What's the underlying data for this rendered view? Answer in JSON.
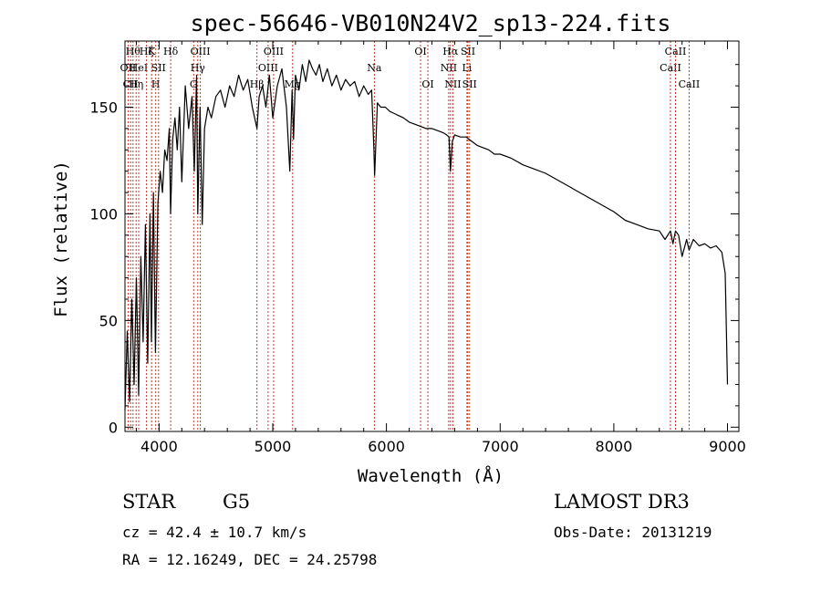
{
  "chart_data": {
    "type": "line",
    "title": "spec-56646-VB010N24V2_sp13-224.fits",
    "xlabel": "Wavelength (Å)",
    "ylabel": "Flux (relative)",
    "xlim": [
      3700,
      9100
    ],
    "ylim": [
      -2,
      181
    ],
    "xticks": [
      4000,
      5000,
      6000,
      7000,
      8000,
      9000
    ],
    "yticks": [
      0,
      50,
      100,
      150
    ],
    "series": [
      {
        "name": "flux",
        "x": [
          3700,
          3720,
          3740,
          3760,
          3780,
          3800,
          3820,
          3840,
          3860,
          3880,
          3900,
          3920,
          3933,
          3950,
          3968,
          3990,
          4010,
          4030,
          4050,
          4070,
          4090,
          4101,
          4120,
          4140,
          4160,
          4180,
          4200,
          4230,
          4260,
          4290,
          4310,
          4330,
          4340,
          4360,
          4380,
          4400,
          4430,
          4460,
          4500,
          4540,
          4580,
          4620,
          4660,
          4700,
          4740,
          4780,
          4820,
          4861,
          4880,
          4910,
          4940,
          4970,
          5000,
          5040,
          5080,
          5120,
          5150,
          5170,
          5183,
          5200,
          5230,
          5260,
          5290,
          5320,
          5350,
          5380,
          5410,
          5440,
          5480,
          5520,
          5560,
          5600,
          5640,
          5680,
          5720,
          5760,
          5800,
          5840,
          5870,
          5890,
          5896,
          5920,
          5950,
          5990,
          6030,
          6070,
          6110,
          6150,
          6200,
          6250,
          6300,
          6350,
          6400,
          6450,
          6500,
          6530,
          6550,
          6563,
          6580,
          6600,
          6650,
          6700,
          6750,
          6800,
          6850,
          6900,
          6950,
          7000,
          7100,
          7200,
          7300,
          7400,
          7500,
          7600,
          7700,
          7800,
          7900,
          8000,
          8100,
          8200,
          8300,
          8400,
          8450,
          8498,
          8520,
          8542,
          8570,
          8600,
          8640,
          8662,
          8700,
          8750,
          8800,
          8850,
          8900,
          8950,
          8980,
          9000
        ],
        "values": [
          8,
          45,
          12,
          60,
          20,
          70,
          15,
          80,
          40,
          95,
          30,
          100,
          40,
          110,
          35,
          105,
          120,
          110,
          130,
          125,
          140,
          100,
          135,
          145,
          130,
          150,
          115,
          160,
          140,
          155,
          120,
          165,
          100,
          150,
          95,
          140,
          150,
          145,
          155,
          158,
          150,
          160,
          155,
          165,
          158,
          163,
          150,
          140,
          155,
          160,
          150,
          165,
          145,
          160,
          168,
          150,
          120,
          158,
          135,
          165,
          158,
          170,
          162,
          172,
          168,
          165,
          170,
          162,
          168,
          160,
          165,
          158,
          163,
          160,
          162,
          155,
          160,
          156,
          158,
          130,
          118,
          152,
          150,
          150,
          148,
          147,
          146,
          145,
          143,
          142,
          141,
          140,
          140,
          139,
          138,
          137,
          136,
          120,
          134,
          137,
          136,
          136,
          134,
          132,
          131,
          130,
          128,
          128,
          126,
          123,
          121,
          119,
          116,
          113,
          110,
          107,
          104,
          101,
          97,
          95,
          93,
          92,
          88,
          92,
          86,
          92,
          90,
          80,
          88,
          83,
          88,
          85,
          86,
          84,
          85,
          82,
          72,
          20
        ]
      }
    ],
    "lines": [
      {
        "wave": 3727,
        "label": "OII",
        "row": 1
      },
      {
        "wave": 3750,
        "label": "CII",
        "row": 2
      },
      {
        "wave": 3771,
        "label": "Hθ",
        "row": 0
      },
      {
        "wave": 3798,
        "label": "Hη",
        "row": 2
      },
      {
        "wave": 3820,
        "label": "HeI",
        "row": 1
      },
      {
        "wave": 3889,
        "label": "Hζ",
        "row": 0
      },
      {
        "wave": 3934,
        "label": "K",
        "row": 0
      },
      {
        "wave": 3970,
        "label": "H",
        "row": 2
      },
      {
        "wave": 3995,
        "label": "SII",
        "row": 1
      },
      {
        "wave": 4102,
        "label": "Hδ",
        "row": 0
      },
      {
        "wave": 4304,
        "label": "G",
        "row": 2
      },
      {
        "wave": 4340,
        "label": "Hγ",
        "row": 1
      },
      {
        "wave": 4363,
        "label": "OIII",
        "row": 0
      },
      {
        "wave": 4861,
        "label": "Hβ",
        "row": 2
      },
      {
        "wave": 4959,
        "label": "OIII",
        "row": 1
      },
      {
        "wave": 5007,
        "label": "OIII",
        "row": 0
      },
      {
        "wave": 5175,
        "label": "Mg",
        "row": 2
      },
      {
        "wave": 5894,
        "label": "Na",
        "row": 1
      },
      {
        "wave": 6300,
        "label": "OI",
        "row": 0
      },
      {
        "wave": 6364,
        "label": "OI",
        "row": 2
      },
      {
        "wave": 6548,
        "label": "NII",
        "row": 1
      },
      {
        "wave": 6563,
        "label": "Hα",
        "row": 0
      },
      {
        "wave": 6584,
        "label": "NII",
        "row": 2
      },
      {
        "wave": 6708,
        "label": "Li",
        "row": 1
      },
      {
        "wave": 6717,
        "label": "SII",
        "row": 0
      },
      {
        "wave": 6731,
        "label": "SII",
        "row": 2
      },
      {
        "wave": 8498,
        "label": "CaII",
        "row": 1
      },
      {
        "wave": 8542,
        "label": "CaII",
        "row": 0
      },
      {
        "wave": 8662,
        "label": "CaII",
        "row": 2
      }
    ]
  },
  "info": {
    "class_label": "STAR",
    "subclass": "G5",
    "survey": "LAMOST DR3",
    "cz": "cz = 42.4 ± 10.7 km/s",
    "obs_date": "Obs-Date: 20131219",
    "coords": "RA =  12.16249, DEC =  24.25798"
  },
  "colors": {
    "line_marker": "#c0392b",
    "spectrum": "#000000"
  }
}
